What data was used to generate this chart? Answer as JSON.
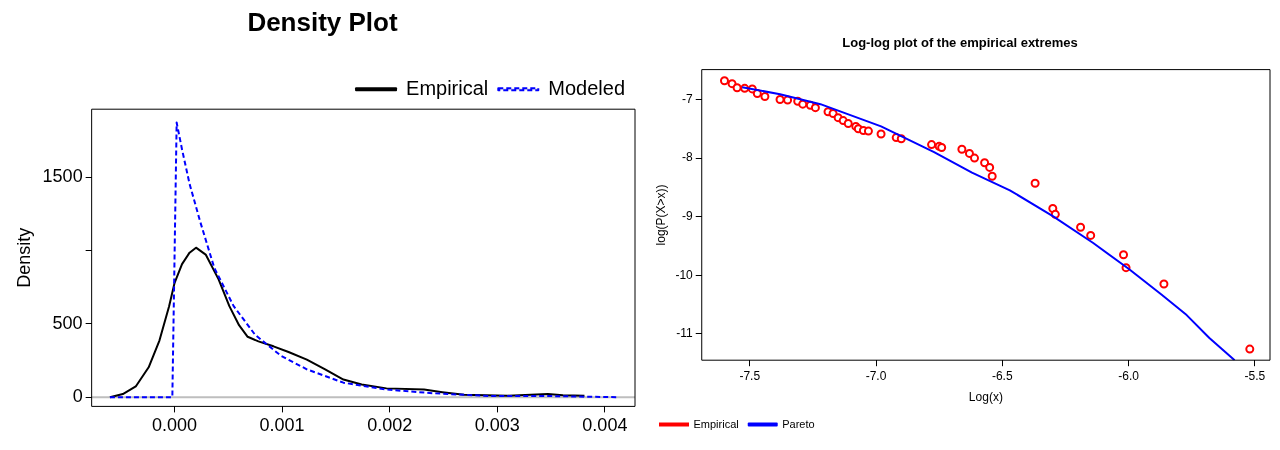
{
  "chart_data": [
    {
      "type": "line",
      "title": "Density Plot",
      "ylabel": "Density",
      "xlim": [
        -0.00077,
        0.00428
      ],
      "ylim": [
        -63,
        1965
      ],
      "xticks": [
        {
          "value": 0,
          "label": "0.000"
        },
        {
          "value": 0.001,
          "label": "0.001"
        },
        {
          "value": 0.002,
          "label": "0.002"
        },
        {
          "value": 0.003,
          "label": "0.003"
        },
        {
          "value": 0.004,
          "label": "0.004"
        }
      ],
      "yticks": [
        0,
        500,
        {
          "value": 1000,
          "label": null
        },
        1500
      ],
      "grid": false,
      "legend": "top right",
      "ref_lines": [
        {
          "axis": "y",
          "value": 0,
          "color": "#bebebe"
        }
      ],
      "series": [
        {
          "name": "Empirical",
          "color": "#000000",
          "line_style": "solid",
          "x": [
            -0.0006,
            -0.00048,
            -0.00036,
            -0.00024,
            -0.00014,
            -5e-05,
            0,
            7e-05,
            0.00014,
            0.0002,
            0.00029,
            0.00041,
            0.00051,
            0.0006,
            0.00068,
            0.00078,
            0.00092,
            0.00106,
            0.00123,
            0.0014,
            0.00157,
            0.00174,
            0.00197,
            0.00232,
            0.00249,
            0.00269,
            0.0031,
            0.00347,
            0.00361,
            0.00381
          ],
          "values": [
            0,
            21,
            73,
            204,
            386,
            621,
            778,
            908,
            986,
            1020,
            973,
            804,
            621,
            491,
            412,
            381,
            347,
            308,
            256,
            190,
            120,
            86,
            60,
            52,
            34,
            16,
            10,
            21,
            13,
            10
          ]
        },
        {
          "name": "Modeled",
          "color": "#0000ff",
          "line_style": "dashed",
          "x": [
            -0.0006,
            -2e-05,
            -1e-05,
            2e-05,
            7e-05,
            0.00014,
            0.00024,
            0.00037,
            0.00055,
            0.00075,
            0.00099,
            0.00123,
            0.00157,
            0.00197,
            0.00242,
            0.00293,
            0.00344,
            0.00412
          ],
          "values": [
            0,
            0,
            464,
            1874,
            1691,
            1456,
            1195,
            882,
            621,
            425,
            282,
            190,
            99,
            52,
            26,
            8,
            8,
            0
          ]
        }
      ]
    },
    {
      "type": "scatter",
      "title": "Log-log plot of the empirical extremes",
      "xlabel": "Log(x)",
      "ylabel": "log(P(X>x))",
      "xlim": [
        -7.69,
        -5.44
      ],
      "ylim": [
        -11.45,
        -6.49
      ],
      "xticks": [
        {
          "value": -7.5,
          "label": "-7.5"
        },
        {
          "value": -7,
          "label": "-7.0"
        },
        {
          "value": -6.5,
          "label": "-6.5"
        },
        {
          "value": -6,
          "label": "-6.0"
        },
        {
          "value": -5.5,
          "label": "-5.5"
        }
      ],
      "yticks": [
        -11,
        -10,
        -9,
        -8,
        -7
      ],
      "grid": false,
      "legend": "bottom left",
      "series": [
        {
          "name": "Empirical",
          "color": "#ff0000",
          "type": "scatter",
          "marker": "circle",
          "x": [
            -7.6,
            -7.57,
            -7.55,
            -7.52,
            -7.49,
            -7.47,
            -7.44,
            -7.38,
            -7.35,
            -7.31,
            -7.29,
            -7.26,
            -7.24,
            -7.19,
            -7.17,
            -7.15,
            -7.13,
            -7.11,
            -7.08,
            -7.07,
            -7.05,
            -7.03,
            -6.98,
            -6.92,
            -6.9,
            -6.78,
            -6.75,
            -6.74,
            -6.66,
            -6.63,
            -6.61,
            -6.57,
            -6.55,
            -6.54,
            -6.37,
            -6.3,
            -6.29,
            -6.19,
            -6.15,
            -6.02,
            -6.01,
            -5.86,
            -5.52
          ],
          "values": [
            -6.68,
            -6.73,
            -6.8,
            -6.81,
            -6.82,
            -6.9,
            -6.95,
            -7.0,
            -7.01,
            -7.03,
            -7.08,
            -7.1,
            -7.14,
            -7.21,
            -7.24,
            -7.31,
            -7.36,
            -7.41,
            -7.46,
            -7.5,
            -7.53,
            -7.54,
            -7.59,
            -7.65,
            -7.67,
            -7.77,
            -7.8,
            -7.82,
            -7.85,
            -7.92,
            -8.0,
            -8.08,
            -8.16,
            -8.31,
            -8.43,
            -8.86,
            -8.96,
            -9.18,
            -9.32,
            -9.65,
            -9.87,
            -10.15,
            -11.26
          ]
        },
        {
          "name": "Pareto",
          "color": "#0000ff",
          "type": "line",
          "x": [
            -7.53,
            -7.38,
            -7.22,
            -6.98,
            -6.77,
            -6.62,
            -6.47,
            -6.3,
            -6.14,
            -6.0,
            -5.87,
            -5.77,
            -5.68,
            -5.58
          ],
          "values": [
            -6.79,
            -6.91,
            -7.08,
            -7.46,
            -7.9,
            -8.25,
            -8.55,
            -8.99,
            -9.45,
            -9.89,
            -10.33,
            -10.68,
            -11.07,
            -11.45
          ]
        }
      ]
    }
  ]
}
